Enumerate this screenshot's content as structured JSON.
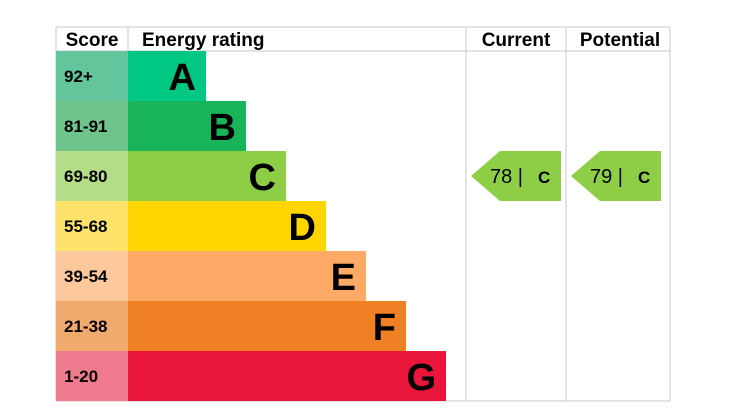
{
  "headers": {
    "score": "Score",
    "energy_rating": "Energy rating",
    "current": "Current",
    "potential": "Potential"
  },
  "chart_data": {
    "type": "bar",
    "title": "",
    "bands": [
      {
        "score": "92+",
        "letter": "A",
        "color": "#00c781",
        "score_bg": "#62c59b"
      },
      {
        "score": "81-91",
        "letter": "B",
        "color": "#19b459",
        "score_bg": "#6fc48c"
      },
      {
        "score": "69-80",
        "letter": "C",
        "color": "#8dce46",
        "score_bg": "#b3dd86"
      },
      {
        "score": "55-68",
        "letter": "D",
        "color": "#ffd500",
        "score_bg": "#fde36a"
      },
      {
        "score": "39-54",
        "letter": "E",
        "color": "#fcaa65",
        "score_bg": "#fcc89c"
      },
      {
        "score": "21-38",
        "letter": "F",
        "color": "#ef8023",
        "score_bg": "#f1aa6e"
      },
      {
        "score": "1-20",
        "letter": "G",
        "color": "#e9153b",
        "score_bg": "#f07b8e"
      }
    ],
    "current": {
      "value": 78,
      "letter": "C",
      "color": "#8dce46",
      "separator": "|"
    },
    "potential": {
      "value": 79,
      "letter": "C",
      "color": "#8dce46",
      "separator": "|"
    }
  }
}
